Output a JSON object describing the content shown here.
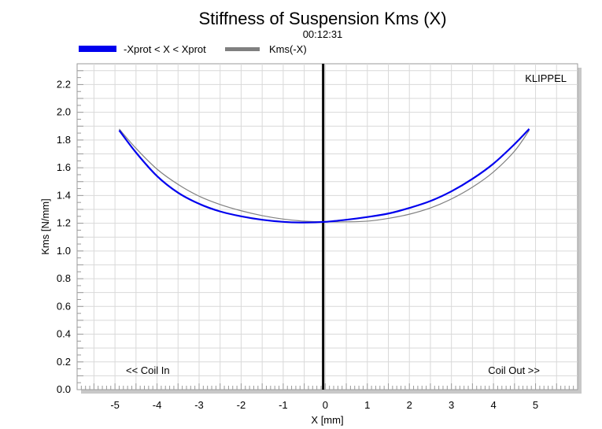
{
  "chart_data": {
    "type": "line",
    "title": "Stiffness of Suspension Kms (X)",
    "subtitle": "00:12:31",
    "xlabel": "X [mm]",
    "ylabel": "Kms [N/mm]",
    "xlim": [
      -5.9,
      6.0
    ],
    "ylim": [
      0.0,
      2.35
    ],
    "x_ticks": [
      "-5",
      "-4",
      "-3",
      "-2",
      "-1",
      "0",
      "1",
      "2",
      "3",
      "4",
      "5"
    ],
    "y_ticks": [
      "0.0",
      "0.2",
      "0.4",
      "0.6",
      "0.8",
      "1.0",
      "1.2",
      "1.4",
      "1.6",
      "1.8",
      "2.0",
      "2.2"
    ],
    "grid": true,
    "legend_position": "top-left",
    "watermark": "KLIPPEL",
    "annotations": {
      "left": "<< Coil In",
      "right": "Coil Out >>"
    },
    "series": [
      {
        "name": "-Xprot < X < Xprot",
        "color": "#0000ee",
        "x": [
          -4.9,
          -4.5,
          -4.0,
          -3.5,
          -3.0,
          -2.5,
          -2.0,
          -1.5,
          -1.0,
          -0.5,
          0.0,
          0.5,
          1.0,
          1.5,
          2.0,
          2.5,
          3.0,
          3.5,
          4.0,
          4.5,
          4.85
        ],
        "y": [
          1.87,
          1.71,
          1.54,
          1.42,
          1.34,
          1.285,
          1.25,
          1.225,
          1.21,
          1.205,
          1.21,
          1.225,
          1.245,
          1.27,
          1.31,
          1.36,
          1.43,
          1.52,
          1.63,
          1.77,
          1.88
        ]
      },
      {
        "name": "Kms(-X)",
        "color": "#808080",
        "x": [
          -4.9,
          -4.5,
          -4.0,
          -3.5,
          -3.0,
          -2.5,
          -2.0,
          -1.5,
          -1.0,
          -0.5,
          0.0,
          0.5,
          1.0,
          1.5,
          2.0,
          2.5,
          3.0,
          3.5,
          4.0,
          4.5,
          4.85
        ],
        "y": [
          1.88,
          1.74,
          1.59,
          1.48,
          1.395,
          1.335,
          1.29,
          1.255,
          1.23,
          1.215,
          1.21,
          1.21,
          1.215,
          1.235,
          1.265,
          1.31,
          1.375,
          1.46,
          1.57,
          1.72,
          1.87
        ]
      }
    ]
  }
}
